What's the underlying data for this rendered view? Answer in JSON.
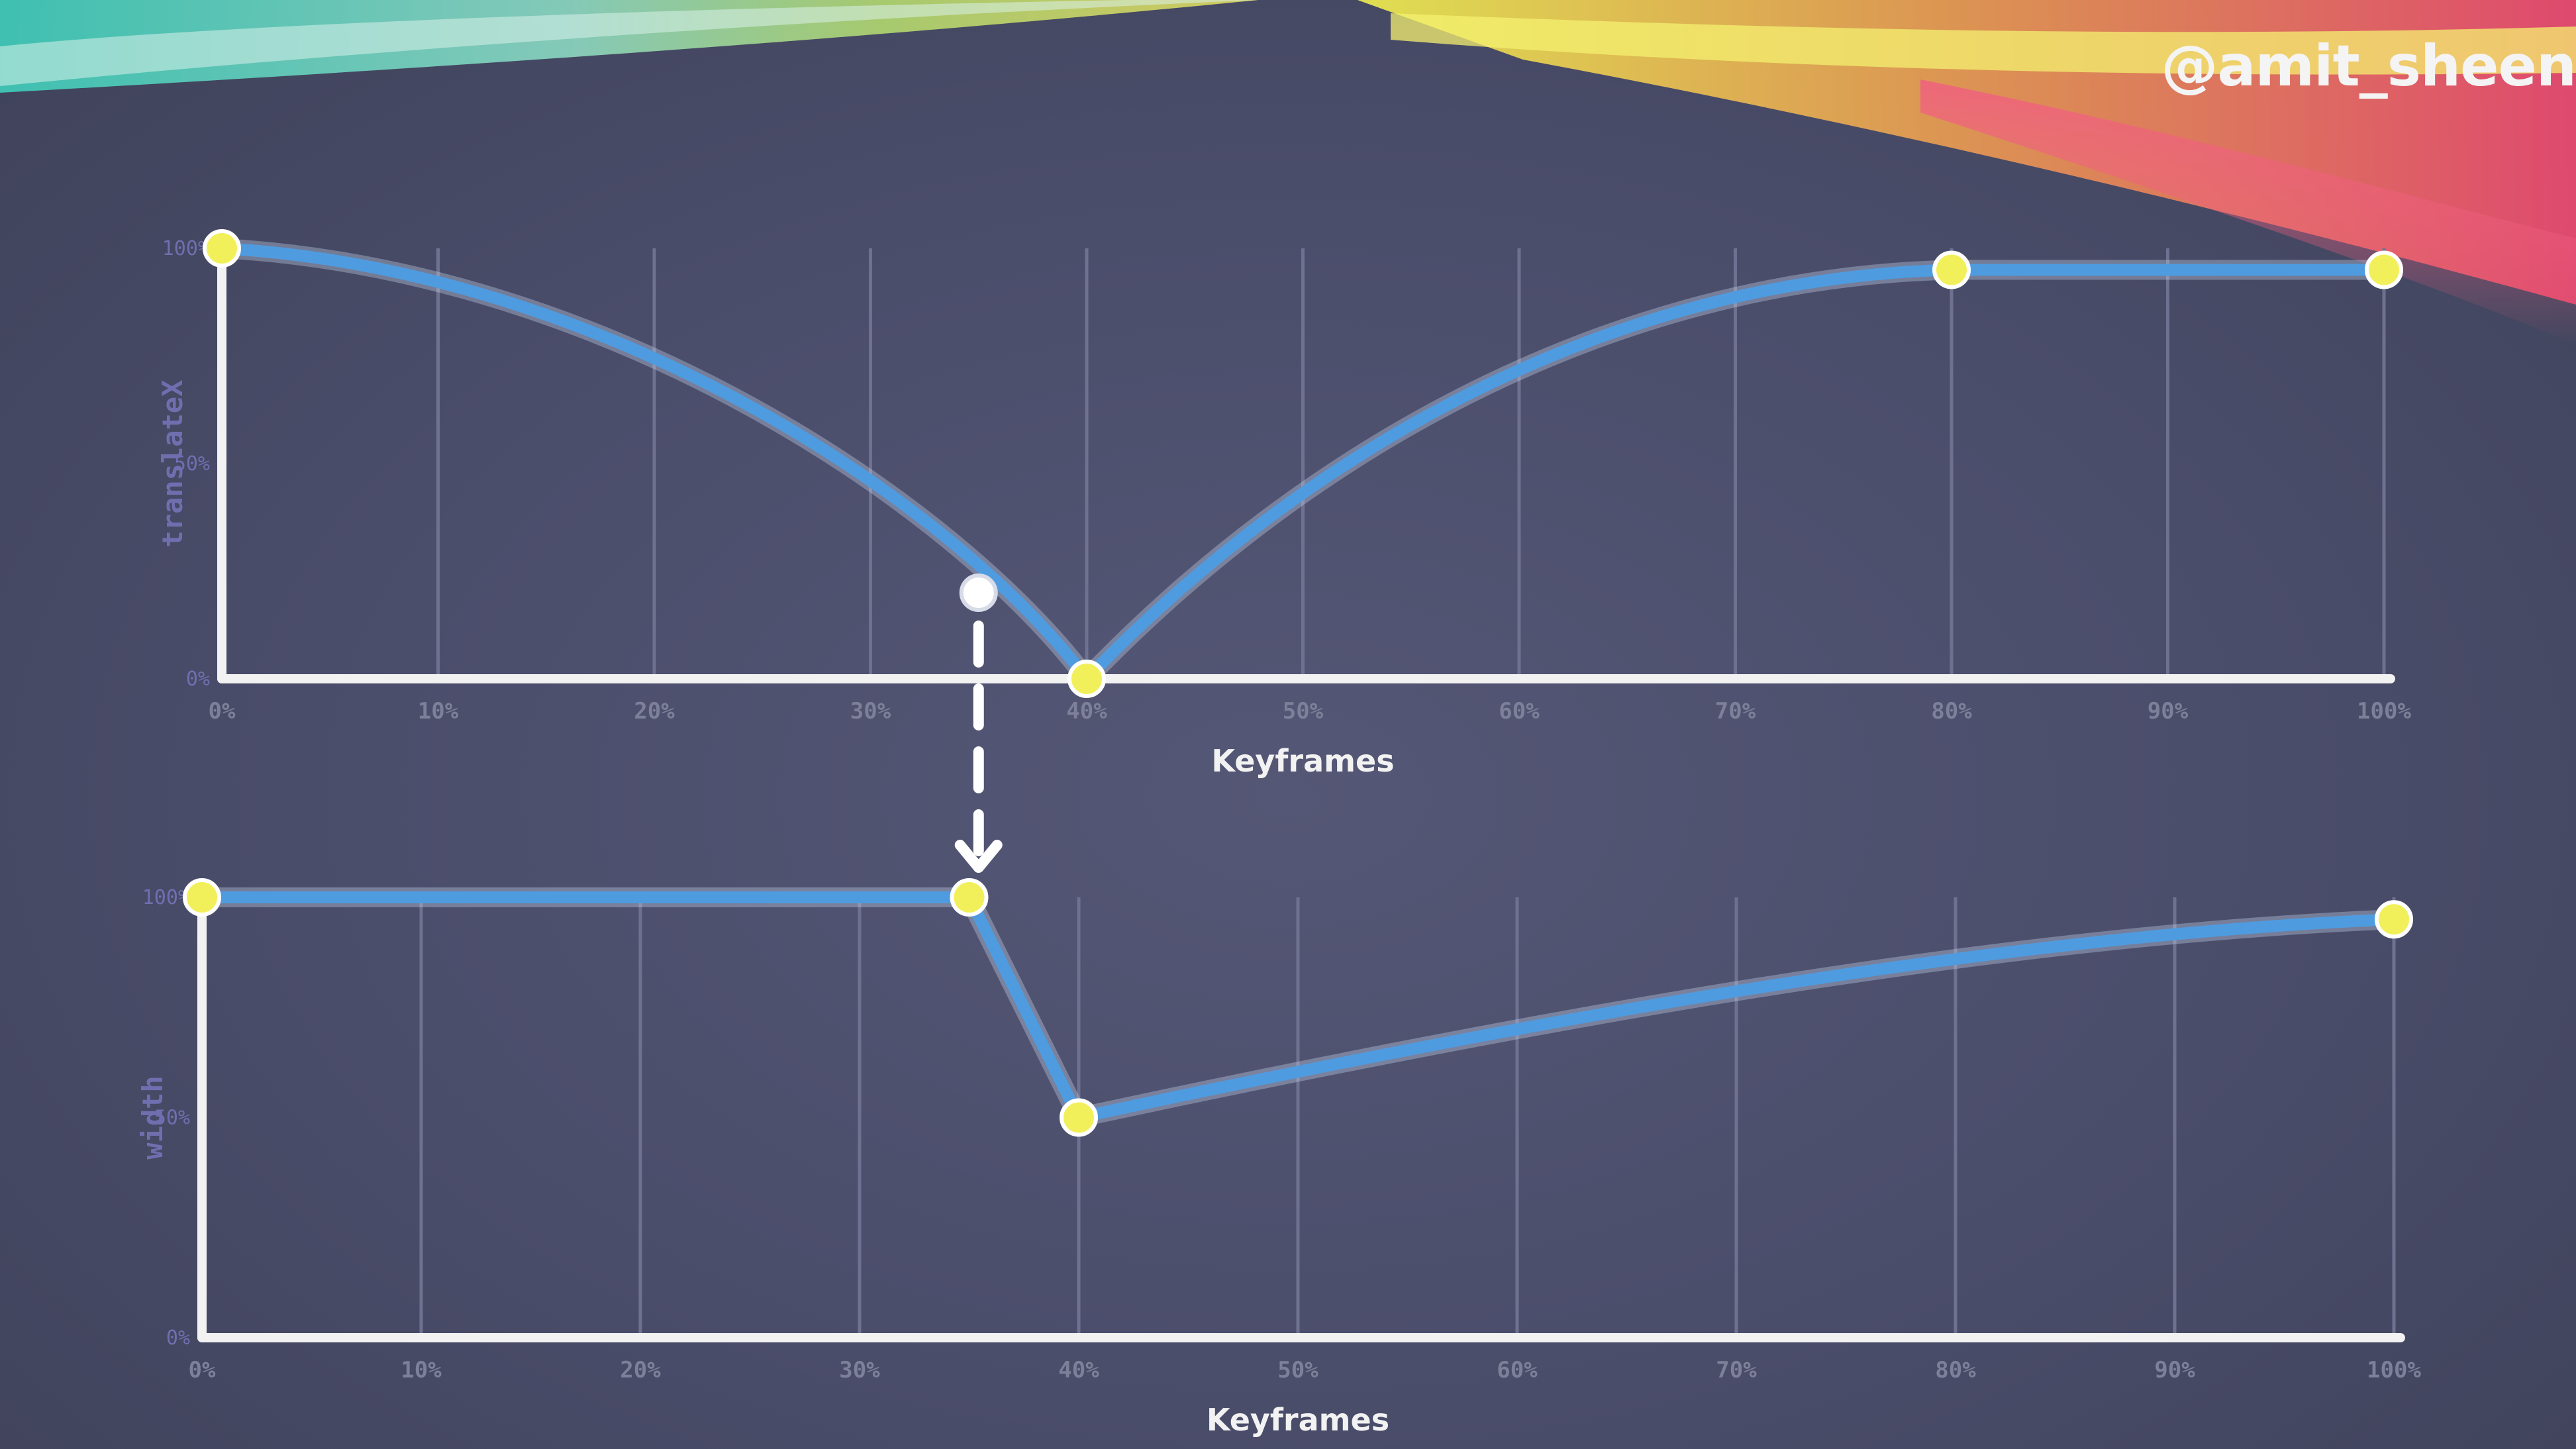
{
  "slide": {
    "handle": "@amit_sheen",
    "colors": {
      "background": "#4a4d68",
      "line": "#4f9be0",
      "point": "#f2f05a",
      "axis": "#f2f2f2",
      "grid": "#6e7190",
      "marker": "#ffffff"
    }
  },
  "chart_data": [
    {
      "type": "line",
      "xlabel": "Keyframes",
      "ylabel": "translateX",
      "x_ticks": [
        "0%",
        "10%",
        "20%",
        "30%",
        "40%",
        "50%",
        "60%",
        "70%",
        "80%",
        "90%",
        "100%"
      ],
      "y_ticks": [
        "100%",
        "50%",
        "0%"
      ],
      "xlim": [
        0,
        100
      ],
      "ylim": [
        0,
        100
      ],
      "grid": true,
      "series": [
        {
          "keyframes": [
            {
              "x": 0,
              "y": 100
            },
            {
              "x": 40,
              "y": 0
            },
            {
              "x": 80,
              "y": 95
            },
            {
              "x": 100,
              "y": 95
            }
          ]
        }
      ],
      "marker": {
        "x": 35,
        "y": 20
      }
    },
    {
      "type": "line",
      "xlabel": "Keyframes",
      "ylabel": "width",
      "x_ticks": [
        "0%",
        "10%",
        "20%",
        "30%",
        "40%",
        "50%",
        "60%",
        "70%",
        "80%",
        "90%",
        "100%"
      ],
      "y_ticks": [
        "100%",
        "50%",
        "0%"
      ],
      "xlim": [
        0,
        100
      ],
      "ylim": [
        0,
        100
      ],
      "grid": true,
      "series": [
        {
          "keyframes": [
            {
              "x": 0,
              "y": 100
            },
            {
              "x": 35,
              "y": 100
            },
            {
              "x": 40,
              "y": 50
            },
            {
              "x": 100,
              "y": 95
            }
          ]
        }
      ]
    }
  ]
}
